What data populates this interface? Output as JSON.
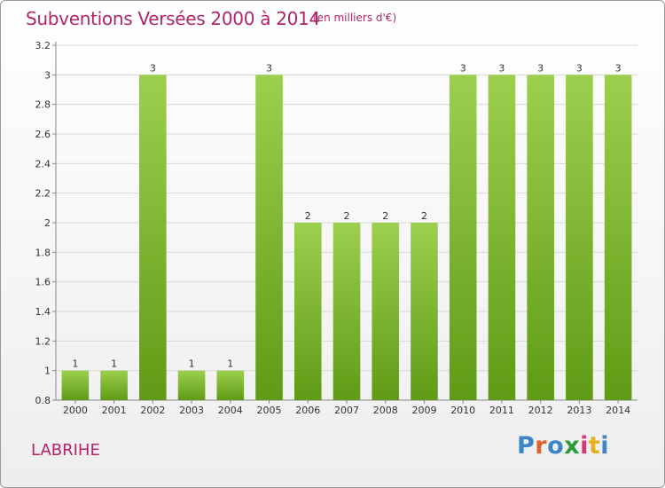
{
  "title": "Subventions Versées 2000 à 2014",
  "unit": "(en milliers d'€)",
  "commune": "LABRIHE",
  "logo": {
    "text": "Proxiti",
    "letter_colors": [
      "#3a86c8",
      "#e0612a",
      "#3a86c8",
      "#2a9a3a",
      "#d23a7a",
      "#e8b020",
      "#3a86c8"
    ]
  },
  "colors": {
    "accent": "#b0256a",
    "bar_light": "#9ccf4e",
    "bar_dark": "#5f9b16",
    "grid": "#d8d8d8",
    "axis_text": "#333333"
  },
  "chart_data": {
    "type": "bar",
    "categories": [
      "2000",
      "2001",
      "2002",
      "2003",
      "2004",
      "2005",
      "2006",
      "2007",
      "2008",
      "2009",
      "2010",
      "2011",
      "2012",
      "2013",
      "2014"
    ],
    "values": [
      1,
      1,
      3,
      1,
      1,
      3,
      2,
      2,
      2,
      2,
      3,
      3,
      3,
      3,
      3
    ],
    "data_labels": [
      "1",
      "1",
      "3",
      "1",
      "1",
      "3",
      "2",
      "2",
      "2",
      "2",
      "3",
      "3",
      "3",
      "3",
      "3"
    ],
    "y_ticks": [
      "0.8",
      "1",
      "1.2",
      "1.4",
      "1.6",
      "1.8",
      "2",
      "2.2",
      "2.4",
      "2.6",
      "2.8",
      "3",
      "3.2"
    ],
    "ylim": [
      0.8,
      3.2
    ],
    "grid": true,
    "xlabel": "",
    "ylabel": ""
  }
}
